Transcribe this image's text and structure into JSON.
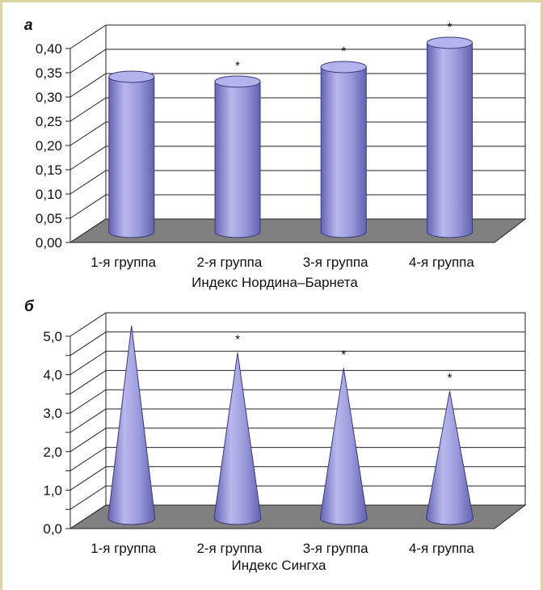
{
  "chart_data": [
    {
      "type": "bar",
      "panel_label": "а",
      "shape": "cylinder",
      "categories": [
        "1-я группа",
        "2-я группа",
        "3-я группа",
        "4-я группа"
      ],
      "values": [
        0.32,
        0.31,
        0.34,
        0.39
      ],
      "significance": [
        "",
        "*",
        "*",
        "*"
      ],
      "title": "",
      "xlabel": "Индекс Нордина–Барнета",
      "ylabel": "",
      "ylim": [
        0,
        0.4
      ],
      "yticks": [
        "0,00",
        "0,05",
        "0,10",
        "0,15",
        "0,20",
        "0,25",
        "0,30",
        "0,35",
        "0,40"
      ],
      "grid": true,
      "legend": "none"
    },
    {
      "type": "bar",
      "panel_label": "б",
      "shape": "cone",
      "categories": [
        "1-я группа",
        "2-я группа",
        "3-я группа",
        "4-я группа"
      ],
      "values": [
        5.0,
        4.3,
        3.9,
        3.3
      ],
      "significance": [
        "",
        "*",
        "*",
        "*"
      ],
      "title": "",
      "xlabel": "Индекс Сингха",
      "ylabel": "",
      "ylim": [
        0,
        5
      ],
      "yticks": [
        "0,0",
        "",
        "1,0",
        "",
        "2,0",
        "",
        "3,0",
        "",
        "4,0",
        "",
        "5,0"
      ],
      "grid": true,
      "legend": "none"
    }
  ],
  "colors": {
    "frame": "#d9d4a0",
    "floor": "#808080",
    "bar_fill": "#9b9bdd",
    "bar_dark": "#6464b4",
    "bar_top": "#b4b4ec"
  }
}
